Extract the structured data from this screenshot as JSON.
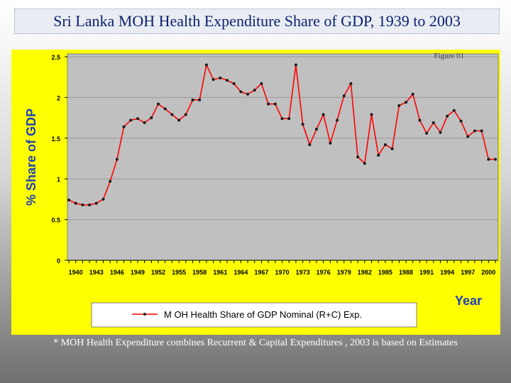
{
  "slide_title": "Sri Lanka MOH Health Expenditure Share of GDP, 1939 to 2003",
  "footnote": "* MOH Health Expenditure combines Recurrent & Capital Expenditures , 2003 is based on Estimates",
  "colors": {
    "panel": "#ffff00",
    "plot_bg": "#c0c0c0",
    "series": "#ff0000",
    "title": "#0a1e6e",
    "axis_label": "#1f40b8"
  },
  "chart_data": {
    "type": "line",
    "annotation": "Figure 01",
    "xlabel": "Year",
    "ylabel": "% Share of GDP",
    "ylim": [
      0,
      2.5
    ],
    "yticks": [
      "0",
      "0.5",
      "1",
      "1.5",
      "2",
      "2.5"
    ],
    "xticks": [
      "1940",
      "1943",
      "1946",
      "1949",
      "1952",
      "1955",
      "1958",
      "1961",
      "1964",
      "1967",
      "1970",
      "1973",
      "1976",
      "1979",
      "1982",
      "1985",
      "1988",
      "1991",
      "1994",
      "1997",
      "2000"
    ],
    "grid": true,
    "legend_position": "bottom-center",
    "series": [
      {
        "name": "M OH Health Share of GDP Nominal (R+C) Exp.",
        "x": [
          1939,
          1940,
          1941,
          1942,
          1943,
          1944,
          1945,
          1946,
          1947,
          1948,
          1949,
          1950,
          1951,
          1952,
          1953,
          1954,
          1955,
          1956,
          1957,
          1958,
          1959,
          1960,
          1961,
          1962,
          1963,
          1964,
          1965,
          1966,
          1967,
          1968,
          1969,
          1970,
          1971,
          1972,
          1973,
          1974,
          1975,
          1976,
          1977,
          1978,
          1979,
          1980,
          1981,
          1982,
          1983,
          1984,
          1985,
          1986,
          1987,
          1988,
          1989,
          1990,
          1991,
          1992,
          1993,
          1994,
          1995,
          1996,
          1997,
          1998,
          1999,
          2000,
          2001
        ],
        "y": [
          0.74,
          0.7,
          0.68,
          0.68,
          0.7,
          0.75,
          0.97,
          1.24,
          1.64,
          1.72,
          1.74,
          1.69,
          1.75,
          1.92,
          1.86,
          1.79,
          1.72,
          1.79,
          1.97,
          1.97,
          2.4,
          2.22,
          2.24,
          2.21,
          2.17,
          2.07,
          2.04,
          2.09,
          2.17,
          1.92,
          1.92,
          1.74,
          1.74,
          2.4,
          1.67,
          1.42,
          1.61,
          1.79,
          1.44,
          1.72,
          2.02,
          2.17,
          1.27,
          1.19,
          1.79,
          1.29,
          1.42,
          1.37,
          1.9,
          1.94,
          2.04,
          1.72,
          1.56,
          1.69,
          1.57,
          1.77,
          1.84,
          1.71,
          1.52,
          1.59,
          1.59,
          1.24,
          1.24
        ]
      }
    ]
  }
}
